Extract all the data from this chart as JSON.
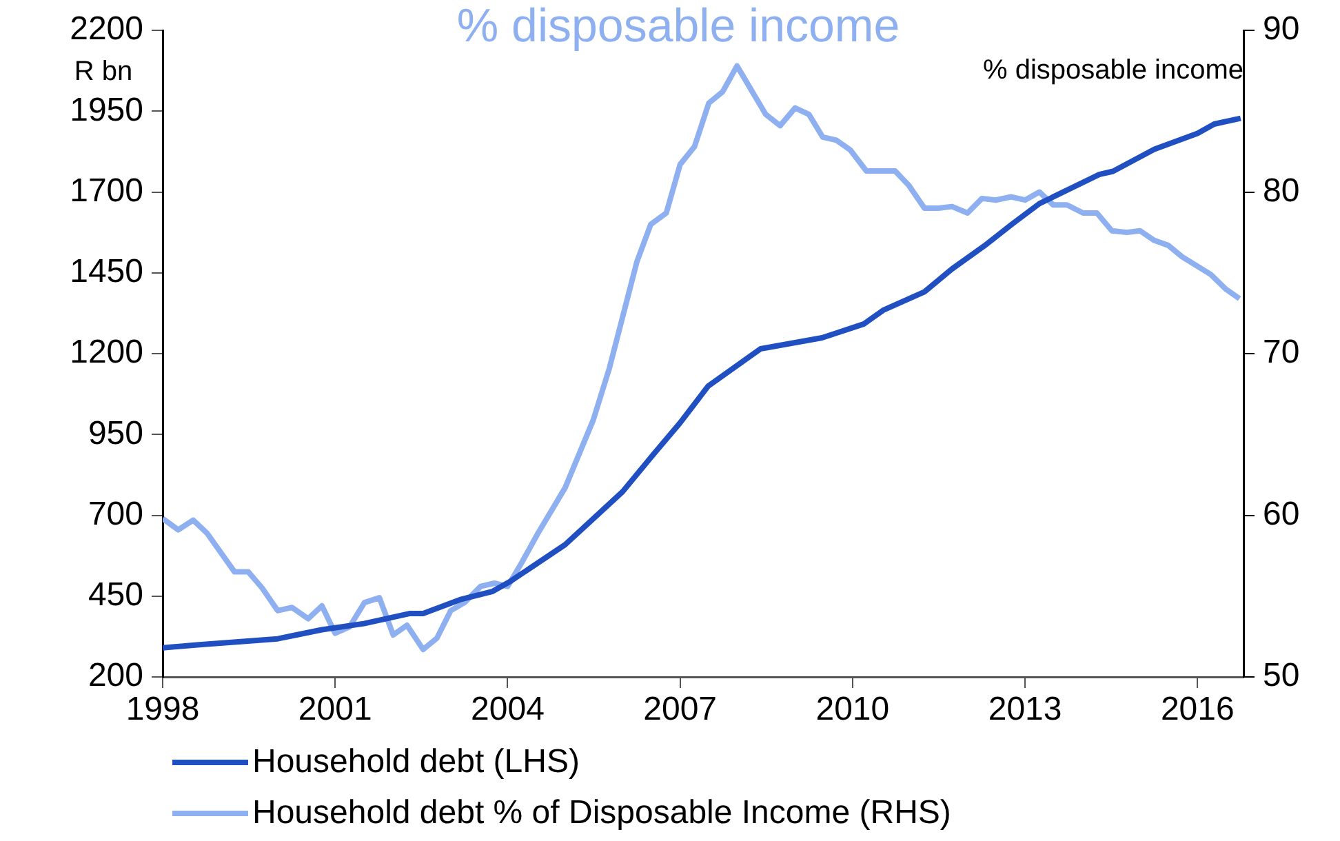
{
  "chart_data": {
    "type": "line",
    "title": "% disposable income",
    "ylabel": "R bn",
    "y2label": "% disposable income",
    "xlim": [
      1998,
      2016.8
    ],
    "xticks": [
      1998,
      2001,
      2004,
      2007,
      2010,
      2013,
      2016
    ],
    "ylim": [
      200,
      2200
    ],
    "yticks": [
      200,
      450,
      700,
      950,
      1200,
      1450,
      1700,
      1950,
      2200
    ],
    "y2lim": [
      50,
      90
    ],
    "y2ticks": [
      50,
      60,
      70,
      80,
      90
    ],
    "grid": false,
    "legend": "bottom",
    "marker": "none",
    "line_style": "solid",
    "series": [
      {
        "name": "Household debt (LHS)",
        "color": "#1f4fc0",
        "x": [
          1998,
          1998.6,
          2000,
          2000.3,
          2000.77,
          2001.5,
          2002.29,
          2002.53,
          2003.17,
          2003.73,
          2004.05,
          2005,
          2006,
          2006.53,
          2007,
          2007.49,
          2008.4,
          2009.47,
          2010.2,
          2010.53,
          2011.25,
          2011.73,
          2012.29,
          2012.77,
          2013.25,
          2014.29,
          2014.53,
          2015.25,
          2016,
          2016.29,
          2016.75
        ],
        "values": [
          290,
          299,
          318,
          329,
          346,
          365,
          396,
          396,
          439,
          464,
          496,
          609,
          773,
          887,
          986,
          1100,
          1215,
          1249,
          1292,
          1334,
          1391,
          1462,
          1533,
          1600,
          1664,
          1754,
          1764,
          1832,
          1881,
          1910,
          1928
        ]
      },
      {
        "name": "Household debt % of Disposable Income (RHS)",
        "color": "#8fb0f0",
        "axis": "y2",
        "x": [
          1998,
          1998.27,
          1998.53,
          1998.77,
          1999.25,
          1999.49,
          1999.73,
          2000,
          2000.25,
          2000.53,
          2000.77,
          2001,
          2001.25,
          2001.51,
          2001.77,
          2002.01,
          2002.25,
          2002.53,
          2002.77,
          2003.01,
          2003.25,
          2003.53,
          2003.77,
          2004,
          2004.25,
          2004.53,
          2005,
          2005.49,
          2005.77,
          2006.25,
          2006.49,
          2006.76,
          2007,
          2007.25,
          2007.5,
          2007.74,
          2007.99,
          2008.49,
          2008.74,
          2009,
          2009.24,
          2009.48,
          2009.72,
          2009.96,
          2010.24,
          2010.74,
          2010.98,
          2011.25,
          2011.49,
          2011.73,
          2012,
          2012.25,
          2012.49,
          2012.76,
          2013,
          2013.25,
          2013.49,
          2013.73,
          2014.01,
          2014.25,
          2014.51,
          2014.77,
          2015,
          2015.25,
          2015.49,
          2015.73,
          2016.23,
          2016.49,
          2016.73
        ],
        "values": [
          59.8,
          59.1,
          59.7,
          58.9,
          56.5,
          56.5,
          55.5,
          54.1,
          54.3,
          53.6,
          54.4,
          52.7,
          53.1,
          54.6,
          54.9,
          52.6,
          53.2,
          51.7,
          52.4,
          54.1,
          54.6,
          55.6,
          55.8,
          55.6,
          57.1,
          58.9,
          61.7,
          65.9,
          69.1,
          75.7,
          78,
          78.7,
          81.7,
          82.8,
          85.5,
          86.2,
          87.8,
          84.8,
          84.1,
          85.2,
          84.8,
          83.4,
          83.2,
          82.6,
          81.3,
          81.3,
          80.4,
          79,
          79,
          79.1,
          78.7,
          79.6,
          79.5,
          79.7,
          79.5,
          80,
          79.2,
          79.2,
          78.7,
          78.7,
          77.6,
          77.5,
          77.6,
          77,
          76.7,
          76,
          74.9,
          74,
          73.4
        ]
      }
    ]
  }
}
